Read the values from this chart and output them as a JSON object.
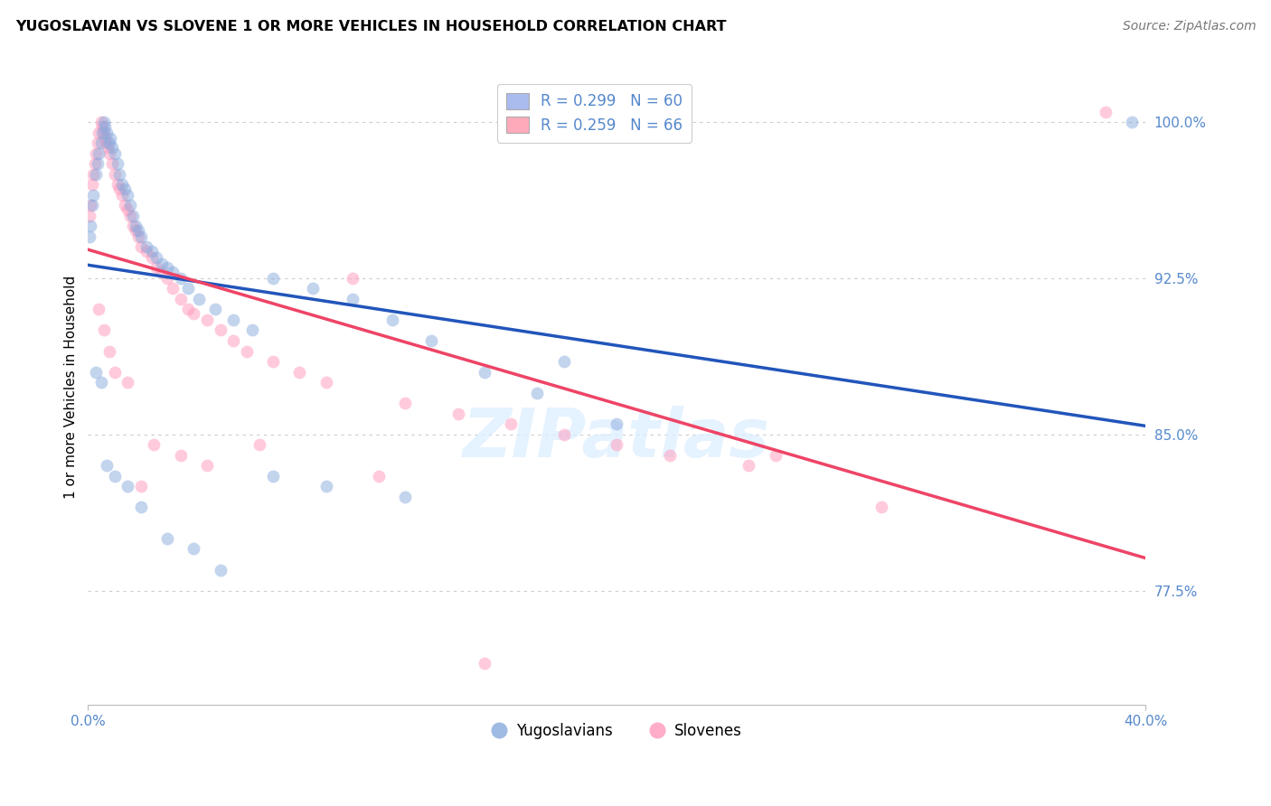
{
  "title": "YUGOSLAVIAN VS SLOVENE 1 OR MORE VEHICLES IN HOUSEHOLD CORRELATION CHART",
  "source": "Source: ZipAtlas.com",
  "ylabel": "1 or more Vehicles in Household",
  "legend_blue_label": "R = 0.299   N = 60",
  "legend_pink_label": "R = 0.259   N = 66",
  "legend_yug": "Yugoslavians",
  "legend_slov": "Slovenes",
  "blue_scatter": "#88AADD",
  "pink_scatter": "#FF99BB",
  "blue_line": "#2255BB",
  "pink_line": "#EE4466",
  "blue_legend_fill": "#AABBEE",
  "pink_legend_fill": "#FFAABB",
  "tick_color": "#5588CC",
  "grid_color": "#CCCCCC",
  "yticks": [
    77.5,
    85.0,
    92.5,
    100.0
  ],
  "xlim": [
    0.0,
    40.0
  ],
  "ylim": [
    72.0,
    102.5
  ],
  "yug_x": [
    0.05,
    0.1,
    0.15,
    0.2,
    0.3,
    0.35,
    0.4,
    0.5,
    0.55,
    0.6,
    0.65,
    0.7,
    0.8,
    0.85,
    0.9,
    1.0,
    1.1,
    1.2,
    1.3,
    1.4,
    1.5,
    1.6,
    1.7,
    1.8,
    1.9,
    2.0,
    2.2,
    2.4,
    2.6,
    2.8,
    3.0,
    3.2,
    3.5,
    3.8,
    4.2,
    4.8,
    5.5,
    6.2,
    7.0,
    8.5,
    10.0,
    11.5,
    13.0,
    15.0,
    17.0,
    20.0,
    0.3,
    0.5,
    0.7,
    1.0,
    1.5,
    2.0,
    3.0,
    4.0,
    5.0,
    7.0,
    9.0,
    12.0,
    39.5,
    18.0
  ],
  "yug_y": [
    94.5,
    95.0,
    96.0,
    96.5,
    97.5,
    98.0,
    98.5,
    99.0,
    99.5,
    100.0,
    99.8,
    99.5,
    99.0,
    99.2,
    98.8,
    98.5,
    98.0,
    97.5,
    97.0,
    96.8,
    96.5,
    96.0,
    95.5,
    95.0,
    94.8,
    94.5,
    94.0,
    93.8,
    93.5,
    93.2,
    93.0,
    92.8,
    92.5,
    92.0,
    91.5,
    91.0,
    90.5,
    90.0,
    92.5,
    92.0,
    91.5,
    90.5,
    89.5,
    88.0,
    87.0,
    85.5,
    88.0,
    87.5,
    83.5,
    83.0,
    82.5,
    81.5,
    80.0,
    79.5,
    78.5,
    83.0,
    82.5,
    82.0,
    100.0,
    88.5
  ],
  "slov_x": [
    0.05,
    0.1,
    0.15,
    0.2,
    0.25,
    0.3,
    0.35,
    0.4,
    0.5,
    0.55,
    0.6,
    0.65,
    0.7,
    0.75,
    0.8,
    0.9,
    1.0,
    1.1,
    1.2,
    1.3,
    1.4,
    1.5,
    1.6,
    1.7,
    1.8,
    1.9,
    2.0,
    2.2,
    2.4,
    2.6,
    2.8,
    3.0,
    3.2,
    3.5,
    3.8,
    4.0,
    4.5,
    5.0,
    5.5,
    6.0,
    7.0,
    8.0,
    9.0,
    10.0,
    12.0,
    14.0,
    16.0,
    18.0,
    22.0,
    25.0,
    30.0,
    0.4,
    0.6,
    0.8,
    1.0,
    1.5,
    2.0,
    2.5,
    3.5,
    4.5,
    6.5,
    11.0,
    15.0,
    20.0,
    26.0,
    38.5
  ],
  "slov_y": [
    95.5,
    96.0,
    97.0,
    97.5,
    98.0,
    98.5,
    99.0,
    99.5,
    100.0,
    99.8,
    99.5,
    99.2,
    99.0,
    98.8,
    98.5,
    98.0,
    97.5,
    97.0,
    96.8,
    96.5,
    96.0,
    95.8,
    95.5,
    95.0,
    94.8,
    94.5,
    94.0,
    93.8,
    93.5,
    93.0,
    92.8,
    92.5,
    92.0,
    91.5,
    91.0,
    90.8,
    90.5,
    90.0,
    89.5,
    89.0,
    88.5,
    88.0,
    87.5,
    92.5,
    86.5,
    86.0,
    85.5,
    85.0,
    84.0,
    83.5,
    81.5,
    91.0,
    90.0,
    89.0,
    88.0,
    87.5,
    82.5,
    84.5,
    84.0,
    83.5,
    84.5,
    83.0,
    74.0,
    84.5,
    84.0,
    100.5
  ]
}
